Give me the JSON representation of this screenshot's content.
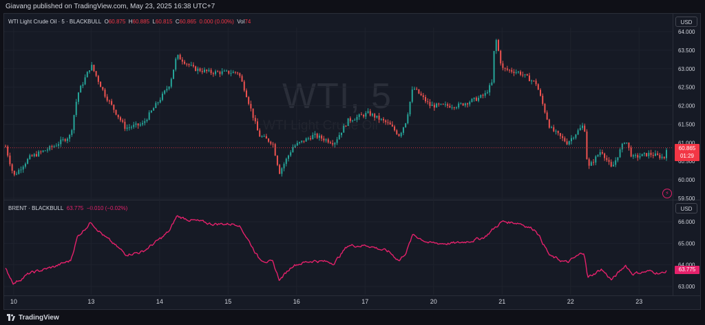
{
  "header": {
    "publish_note": "Giavang published on TradingView.com, May 23, 2025 16:38 UTC+7"
  },
  "footer": {
    "brand": "TradingView"
  },
  "wti_legend": {
    "title": "WTI Light Crude Oil · 5 · BLACKBULL",
    "o_key": "O",
    "o_val": "60.875",
    "h_key": "H",
    "h_val": "60.885",
    "l_key": "L",
    "l_val": "60.815",
    "c_key": "C",
    "c_val": "60.865",
    "change": "0.000 (0.00%)",
    "vol_key": "Vol",
    "vol_val": "74"
  },
  "brent_legend": {
    "title": "BRENT · BLACKBULL",
    "price": "63.775",
    "change": "−0.010 (−0.02%)"
  },
  "watermark": {
    "big": "WTI, 5",
    "small": "WTI Light Crude Oil"
  },
  "currency": {
    "top": "USD",
    "bottom": "USD"
  },
  "price_label": {
    "price": "60.865",
    "countdown": "01:29"
  },
  "brent_price_label": "63.775",
  "colors": {
    "up": "#26a69a",
    "down": "#ef5350",
    "brent": "#e5216b",
    "last_price": "#f23645"
  },
  "chart_data": [
    {
      "type": "candlestick",
      "title": "WTI Light Crude Oil · 5 · BLACKBULL",
      "ylim": [
        59.5,
        64.0
      ],
      "yticks": [
        "64.000",
        "63.500",
        "63.000",
        "62.500",
        "62.000",
        "61.500",
        "61.000",
        "60.500",
        "60.000",
        "59.500"
      ],
      "ytick_values": [
        64.0,
        63.5,
        63.0,
        62.5,
        62.0,
        61.5,
        61.0,
        60.5,
        60.0,
        59.5
      ],
      "xticks": [
        "10",
        "13",
        "14",
        "15",
        "16",
        "17",
        "20",
        "21",
        "22",
        "23"
      ],
      "last_price": 60.865,
      "price_path": [
        [
          0,
          60.9
        ],
        [
          0.12,
          60.1
        ],
        [
          0.35,
          60.6
        ],
        [
          0.7,
          60.9
        ],
        [
          0.95,
          61.2
        ],
        [
          1.05,
          62.3
        ],
        [
          1.25,
          63.1
        ],
        [
          1.45,
          62.3
        ],
        [
          1.75,
          61.4
        ],
        [
          2.0,
          61.5
        ],
        [
          2.3,
          62.3
        ],
        [
          2.4,
          62.6
        ],
        [
          2.5,
          63.35
        ],
        [
          2.75,
          63.0
        ],
        [
          3.0,
          62.9
        ],
        [
          3.4,
          62.9
        ],
        [
          3.5,
          62.4
        ],
        [
          3.7,
          61.2
        ],
        [
          3.9,
          61.0
        ],
        [
          4.0,
          60.2
        ],
        [
          4.2,
          60.9
        ],
        [
          4.5,
          61.2
        ],
        [
          4.8,
          61.0
        ],
        [
          5.0,
          61.6
        ],
        [
          5.3,
          61.8
        ],
        [
          5.6,
          61.5
        ],
        [
          5.75,
          61.2
        ],
        [
          5.85,
          61.6
        ],
        [
          5.95,
          62.5
        ],
        [
          6.2,
          62.0
        ],
        [
          6.6,
          62.0
        ],
        [
          6.9,
          62.2
        ],
        [
          7.0,
          62.3
        ],
        [
          7.1,
          62.6
        ],
        [
          7.15,
          63.9
        ],
        [
          7.25,
          63.0
        ],
        [
          7.5,
          62.9
        ],
        [
          7.75,
          62.6
        ],
        [
          7.95,
          61.4
        ],
        [
          8.2,
          61.0
        ],
        [
          8.45,
          61.5
        ],
        [
          8.5,
          60.3
        ],
        [
          8.7,
          60.8
        ],
        [
          8.85,
          60.3
        ],
        [
          9.0,
          60.9
        ],
        [
          9.05,
          61.1
        ],
        [
          9.15,
          60.6
        ],
        [
          9.4,
          60.7
        ],
        [
          9.62,
          60.6
        ],
        [
          9.65,
          60.865
        ]
      ]
    },
    {
      "type": "line",
      "title": "BRENT · BLACKBULL",
      "ylim": [
        62.5,
        66.5
      ],
      "yticks": [
        "66.000",
        "65.000",
        "64.000",
        "63.000"
      ],
      "ytick_values": [
        66.0,
        65.0,
        64.0,
        63.0
      ],
      "xticks": [
        "10",
        "13",
        "14",
        "15",
        "16",
        "17",
        "20",
        "21",
        "22",
        "23"
      ],
      "last_price": 63.775,
      "series": [
        {
          "values": [
            [
              0,
              63.8
            ],
            [
              0.12,
              63.15
            ],
            [
              0.35,
              63.6
            ],
            [
              0.7,
              63.9
            ],
            [
              0.95,
              64.2
            ],
            [
              1.05,
              65.3
            ],
            [
              1.25,
              66.0
            ],
            [
              1.45,
              65.3
            ],
            [
              1.75,
              64.5
            ],
            [
              2.0,
              64.6
            ],
            [
              2.3,
              65.3
            ],
            [
              2.4,
              65.6
            ],
            [
              2.5,
              66.25
            ],
            [
              2.75,
              66.05
            ],
            [
              3.0,
              65.9
            ],
            [
              3.4,
              65.9
            ],
            [
              3.5,
              65.4
            ],
            [
              3.7,
              64.3
            ],
            [
              3.9,
              64.1
            ],
            [
              4.0,
              63.3
            ],
            [
              4.2,
              64.0
            ],
            [
              4.5,
              64.2
            ],
            [
              4.8,
              64.1
            ],
            [
              5.0,
              64.9
            ],
            [
              5.3,
              64.9
            ],
            [
              5.6,
              64.6
            ],
            [
              5.75,
              64.2
            ],
            [
              5.85,
              64.6
            ],
            [
              5.95,
              65.4
            ],
            [
              6.2,
              65.0
            ],
            [
              6.6,
              65.0
            ],
            [
              6.9,
              65.2
            ],
            [
              7.0,
              65.3
            ],
            [
              7.1,
              65.6
            ],
            [
              7.25,
              66.0
            ],
            [
              7.5,
              65.95
            ],
            [
              7.75,
              65.6
            ],
            [
              7.95,
              64.4
            ],
            [
              8.2,
              64.1
            ],
            [
              8.45,
              64.6
            ],
            [
              8.5,
              63.4
            ],
            [
              8.7,
              63.8
            ],
            [
              8.85,
              63.3
            ],
            [
              9.0,
              63.8
            ],
            [
              9.05,
              64.0
            ],
            [
              9.15,
              63.6
            ],
            [
              9.4,
              63.7
            ],
            [
              9.62,
              63.6
            ],
            [
              9.65,
              63.775
            ]
          ]
        }
      ]
    }
  ]
}
